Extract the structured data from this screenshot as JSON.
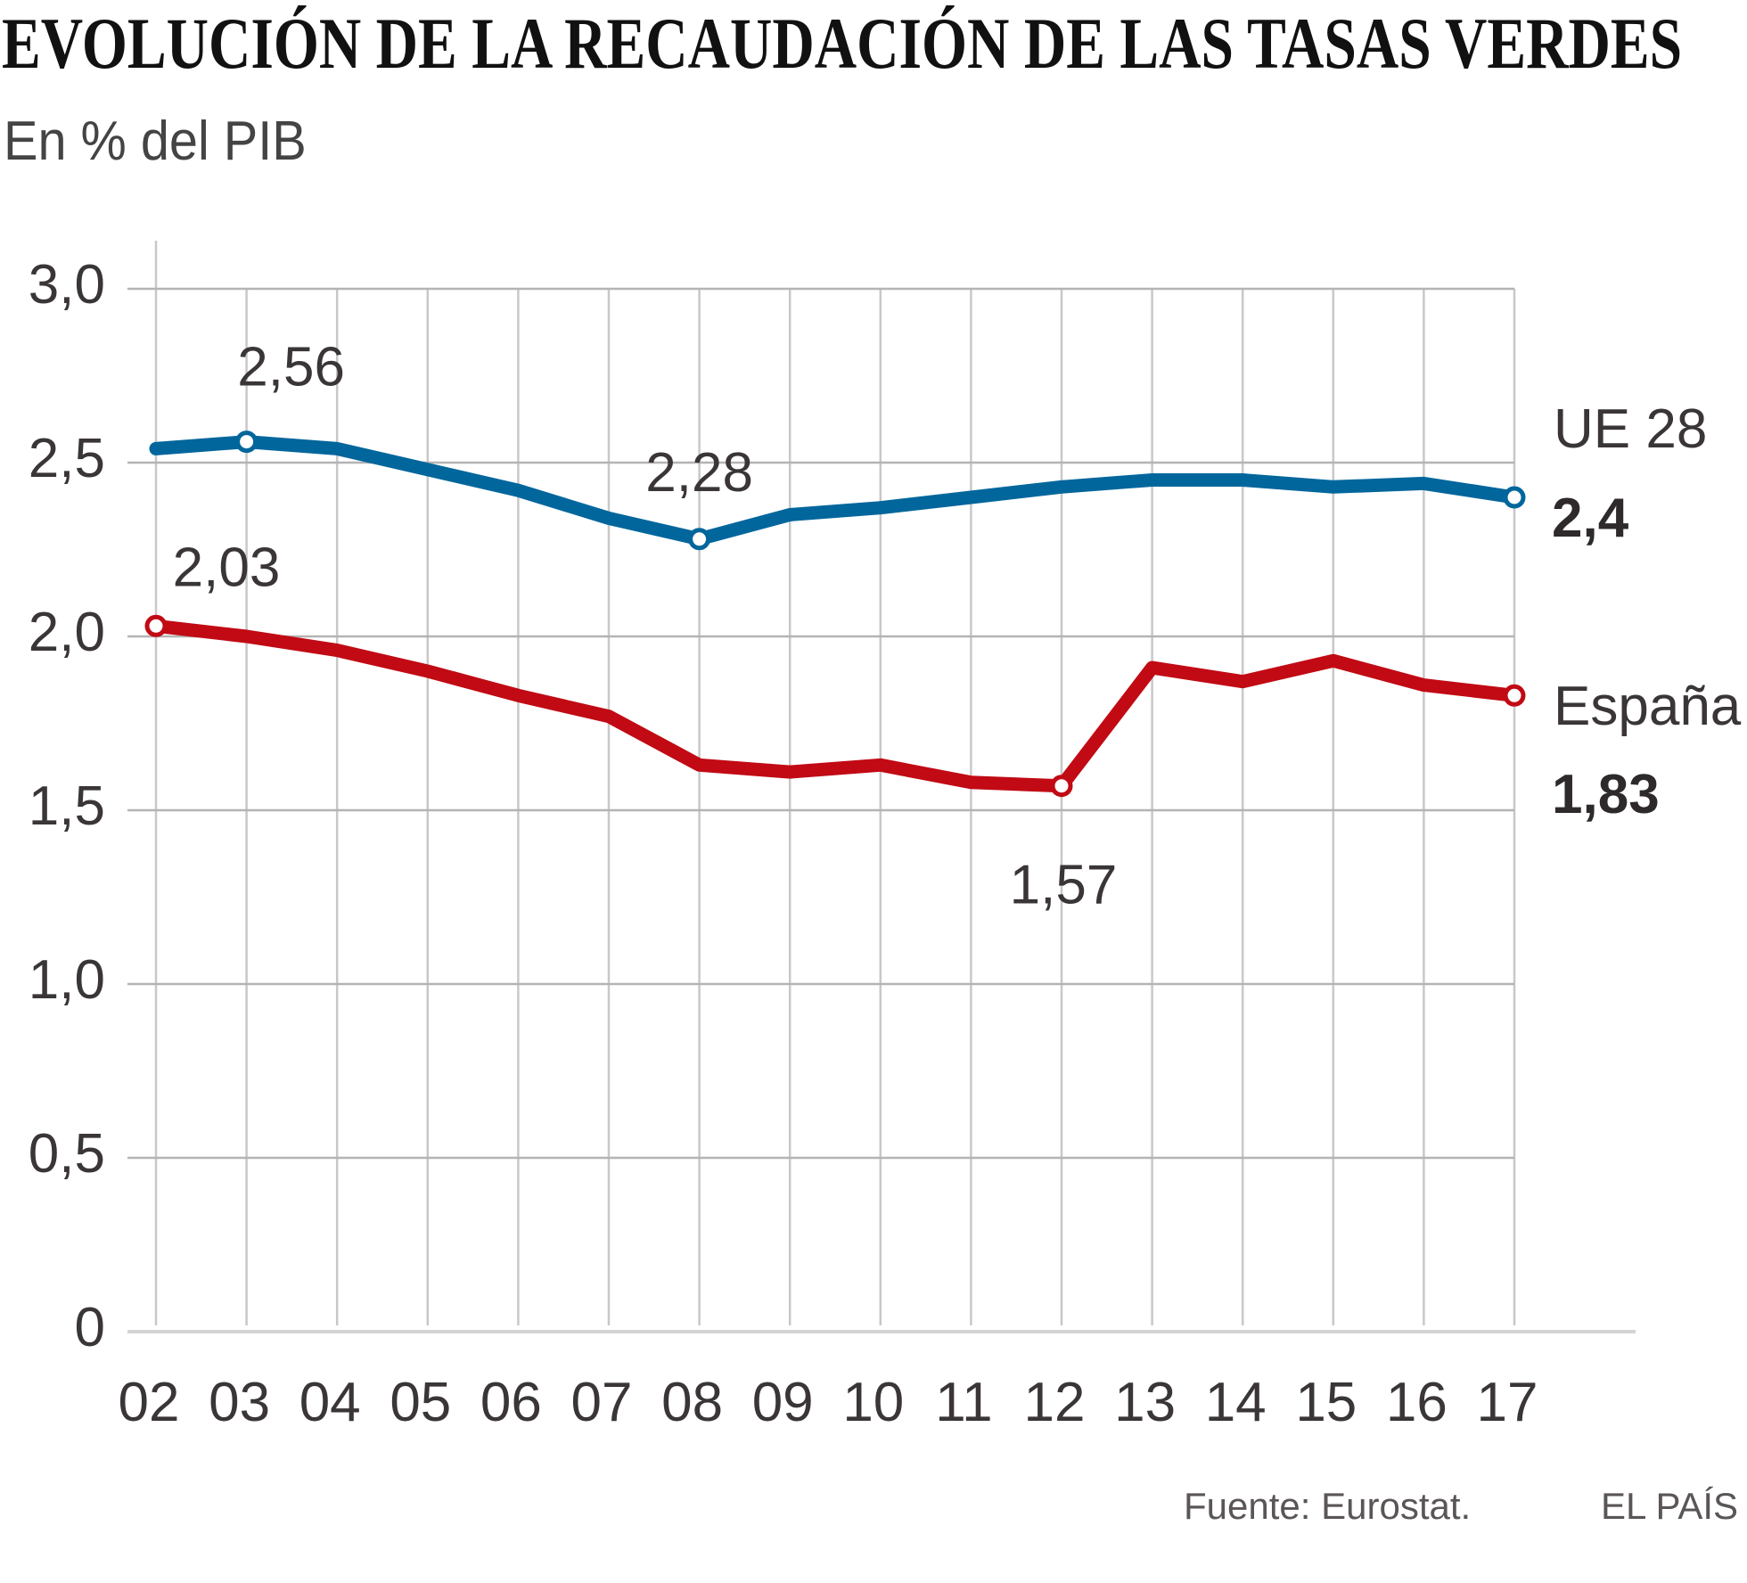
{
  "header": {
    "title": "EVOLUCIÓN DE LA RECAUDACIÓN DE LAS TASAS VERDES",
    "subtitle": "En % del PIB"
  },
  "footer": {
    "source": "Fuente: Eurostat.",
    "brand": "EL PAÍS"
  },
  "chart_data": {
    "type": "line",
    "title": "EVOLUCIÓN DE LA RECAUDACIÓN DE LAS TASAS VERDES",
    "subtitle": "En % del PIB",
    "xlabel": "",
    "ylabel": "En % del PIB",
    "x": [
      "02",
      "03",
      "04",
      "05",
      "06",
      "07",
      "08",
      "09",
      "10",
      "11",
      "12",
      "13",
      "14",
      "15",
      "16",
      "17"
    ],
    "ylim": [
      0,
      3.0
    ],
    "yticks": [
      0,
      0.5,
      1.0,
      1.5,
      2.0,
      2.5,
      3.0
    ],
    "ytick_labels": [
      "0",
      "0,5",
      "1,0",
      "1,5",
      "2,0",
      "2,5",
      "3,0"
    ],
    "grid": true,
    "legend": "inline-right",
    "series": [
      {
        "name": "UE 28",
        "color": "#00669c",
        "values": [
          2.54,
          2.56,
          2.54,
          2.48,
          2.42,
          2.34,
          2.28,
          2.35,
          2.37,
          2.4,
          2.43,
          2.45,
          2.45,
          2.43,
          2.44,
          2.4
        ],
        "end_label": "2,4",
        "markers": [
          {
            "index": 1,
            "label": "2,56"
          },
          {
            "index": 6,
            "label": "2,28"
          },
          {
            "index": 15,
            "label": ""
          }
        ]
      },
      {
        "name": "España",
        "color": "#c10a14",
        "values": [
          2.03,
          2.0,
          1.96,
          1.9,
          1.83,
          1.77,
          1.63,
          1.61,
          1.63,
          1.58,
          1.57,
          1.91,
          1.87,
          1.93,
          1.86,
          1.83
        ],
        "end_label": "1,83",
        "markers": [
          {
            "index": 0,
            "label": "2,03"
          },
          {
            "index": 10,
            "label": "1,57"
          },
          {
            "index": 15,
            "label": ""
          }
        ]
      }
    ]
  }
}
